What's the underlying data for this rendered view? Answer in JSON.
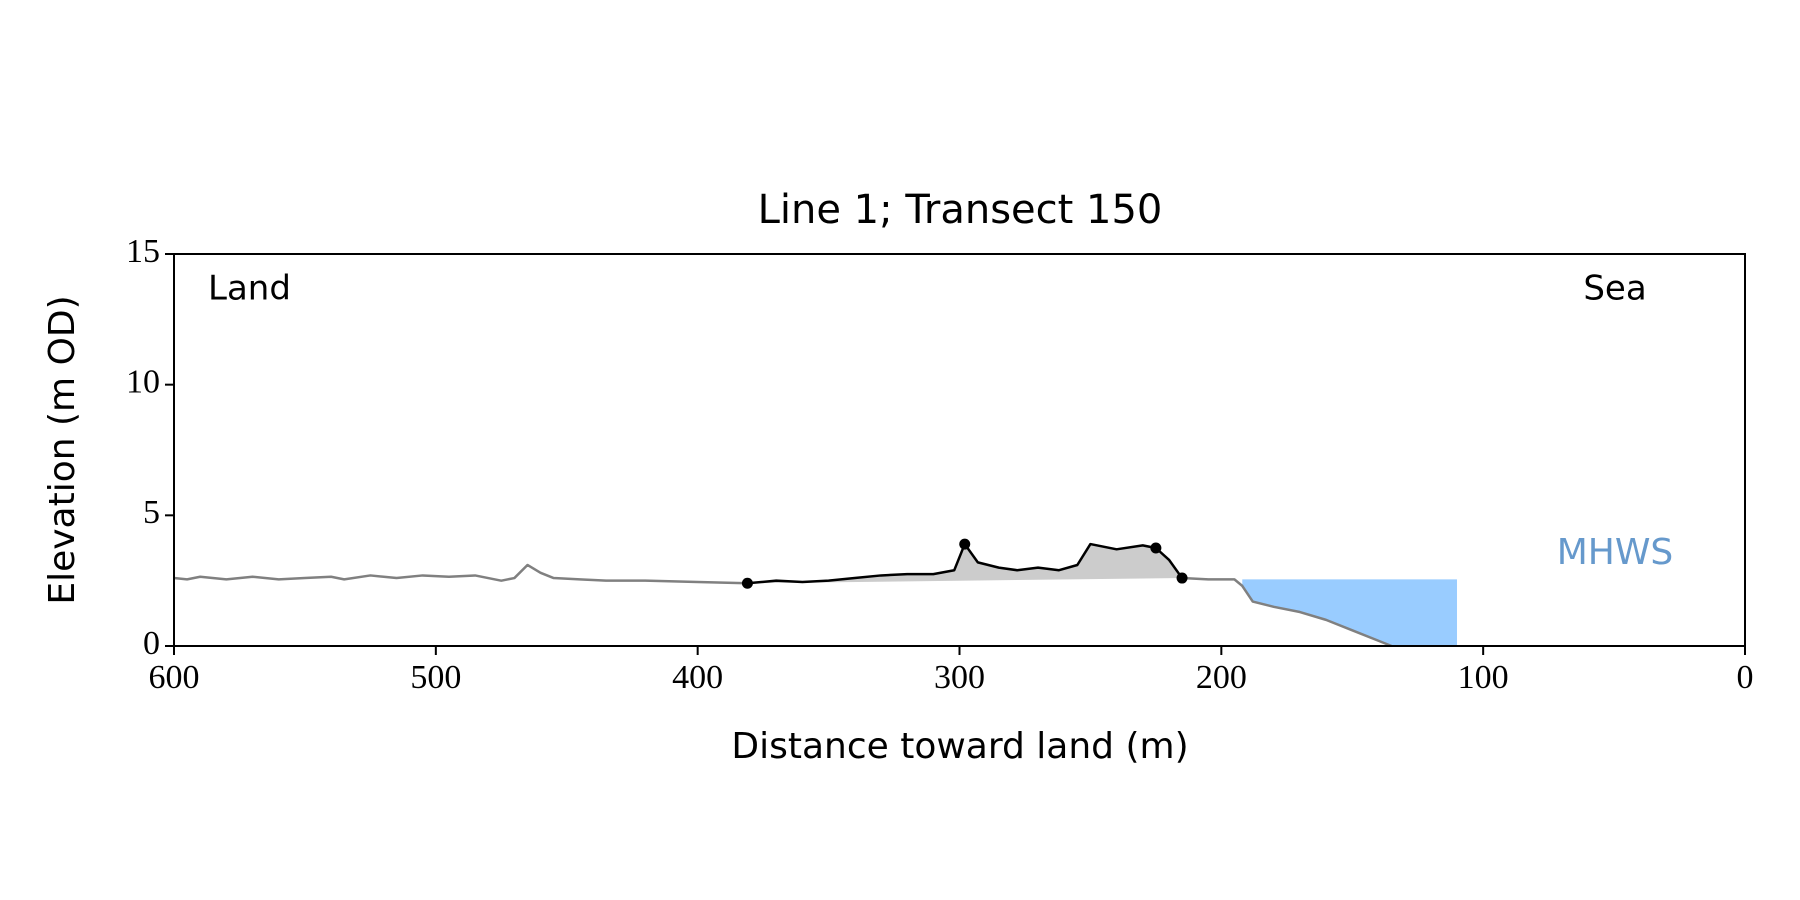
{
  "chart_data": {
    "type": "line",
    "title": "Line 1; Transect 150",
    "xlabel": "Distance toward land (m)",
    "ylabel": "Elevation (m OD)",
    "xlim": [
      600,
      0
    ],
    "ylim": [
      0,
      15
    ],
    "xticks": [
      600,
      500,
      400,
      300,
      200,
      100,
      0
    ],
    "yticks": [
      0,
      5,
      10,
      15
    ],
    "annotations": {
      "left": "Land",
      "right": "Sea",
      "level": "MHWS"
    },
    "series": [
      {
        "color": "#808080",
        "x": [
          600,
          595,
          590,
          580,
          570,
          560,
          550,
          540,
          535,
          525,
          515,
          505,
          495,
          485,
          475,
          470,
          465,
          460,
          455,
          445,
          435,
          420,
          400,
          381
        ],
        "values": [
          2.6,
          2.55,
          2.65,
          2.55,
          2.65,
          2.55,
          2.6,
          2.65,
          2.55,
          2.7,
          2.6,
          2.7,
          2.65,
          2.7,
          2.5,
          2.6,
          3.1,
          2.8,
          2.6,
          2.55,
          2.5,
          2.5,
          2.45,
          2.4
        ]
      },
      {
        "color": "#000000",
        "fill": "#cccccc",
        "x": [
          381,
          370,
          360,
          350,
          340,
          330,
          320,
          310,
          302,
          298,
          293,
          285,
          278,
          270,
          262,
          255,
          250,
          245,
          240,
          230,
          225,
          220,
          215
        ],
        "values": [
          2.4,
          2.5,
          2.45,
          2.5,
          2.6,
          2.7,
          2.75,
          2.75,
          2.9,
          3.9,
          3.2,
          3.0,
          2.9,
          3.0,
          2.9,
          3.1,
          3.9,
          3.8,
          3.7,
          3.85,
          3.75,
          3.3,
          2.6
        ]
      },
      {
        "color": "#808080",
        "x": [
          215,
          205,
          195,
          192,
          188,
          180,
          170,
          160,
          150,
          140,
          135
        ],
        "values": [
          2.6,
          2.55,
          2.55,
          2.3,
          1.7,
          1.5,
          1.3,
          1.0,
          0.6,
          0.2,
          0
        ]
      },
      {
        "color": "#000000",
        "points": true,
        "x": [
          381,
          298,
          225,
          215
        ],
        "values": [
          2.4,
          3.9,
          3.75,
          2.6
        ]
      }
    ],
    "mhws": {
      "level": 2.55,
      "x": [
        192,
        110
      ],
      "color": "#99ccff",
      "label_color": "#6699cc"
    }
  }
}
